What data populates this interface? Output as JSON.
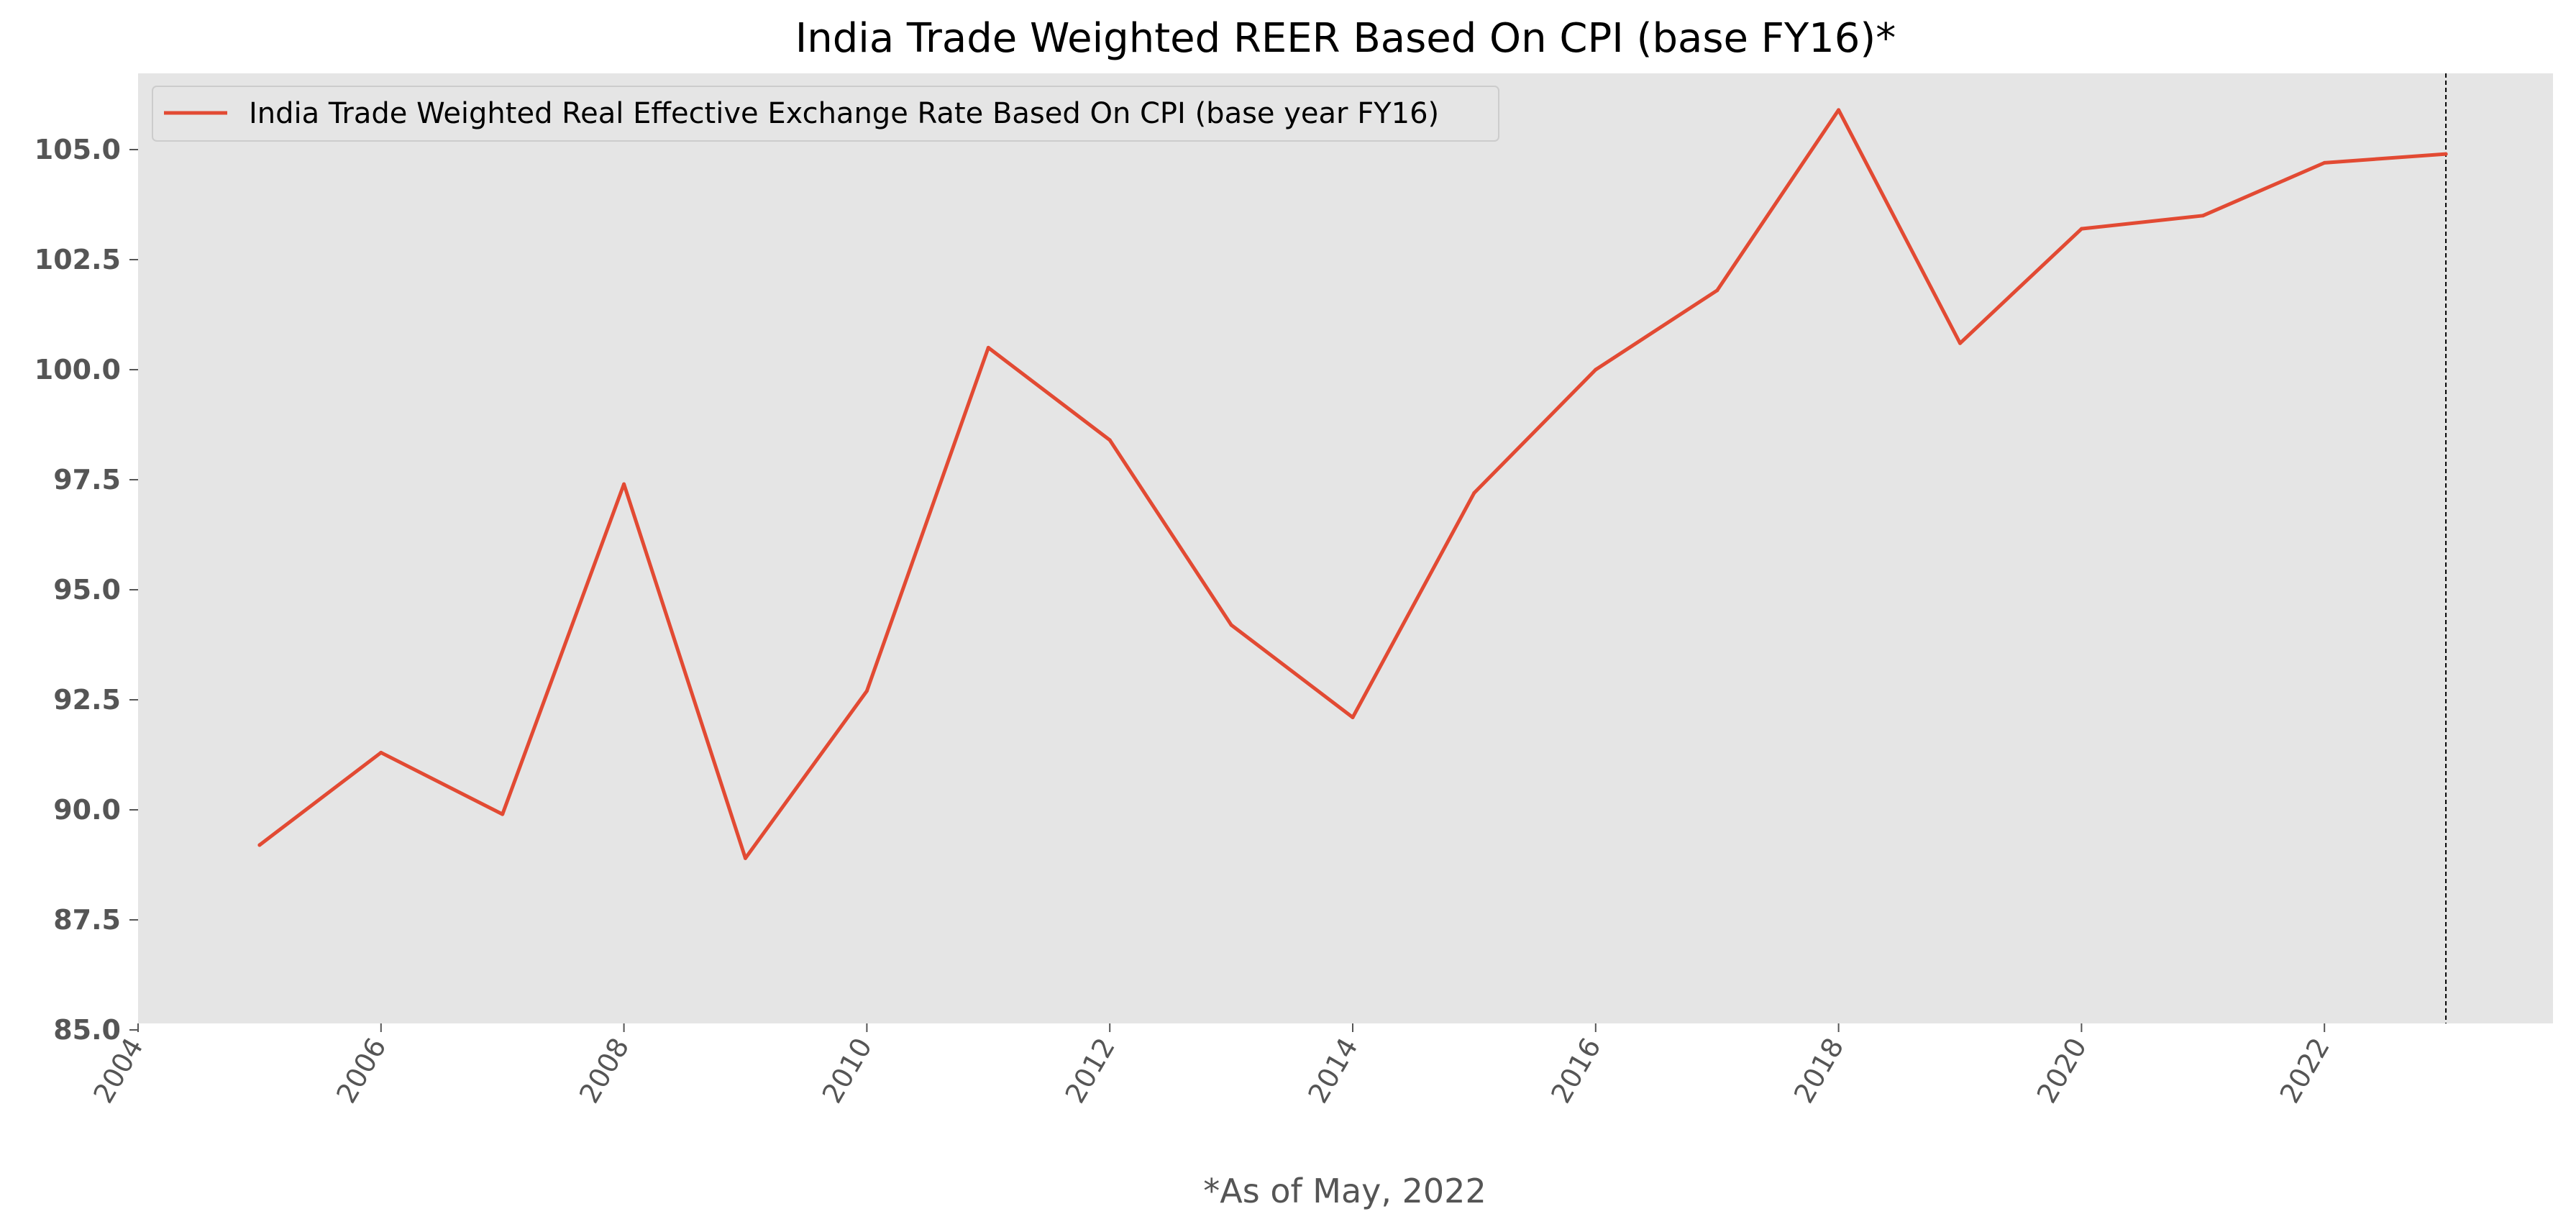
{
  "chart_data": {
    "type": "line",
    "title": "India Trade Weighted REER Based On CPI (base FY16)*",
    "xlabel": "*As of May, 2022",
    "ylabel": "",
    "xlim": [
      2004,
      2024
    ],
    "ylim": [
      85.0,
      105.0
    ],
    "x_ticks": [
      "2004",
      "2006",
      "2008",
      "2010",
      "2012",
      "2014",
      "2016",
      "2018",
      "2020",
      "2022"
    ],
    "y_ticks": [
      "85.0",
      "87.5",
      "90.0",
      "92.5",
      "95.0",
      "97.5",
      "100.0",
      "102.5",
      "105.0"
    ],
    "grid": false,
    "legend_position": "top-left",
    "background_color": "#e5e5e5",
    "series": [
      {
        "name": "India Trade Weighted Real Effective Exchange Rate Based On CPI (base year FY16)",
        "color": "#e24a33",
        "x": [
          2005,
          2006,
          2007,
          2008,
          2009,
          2010,
          2011,
          2012,
          2013,
          2014,
          2015,
          2016,
          2017,
          2018,
          2019,
          2020,
          2021,
          2022,
          2023
        ],
        "values": [
          89.2,
          91.3,
          89.9,
          97.4,
          88.9,
          92.7,
          100.5,
          98.4,
          94.2,
          92.1,
          97.2,
          100.0,
          101.8,
          105.9,
          100.6,
          103.2,
          103.5,
          104.7,
          104.9
        ]
      }
    ],
    "vertical_line": {
      "x": 2023,
      "style": "dashed",
      "color": "#000000"
    }
  }
}
